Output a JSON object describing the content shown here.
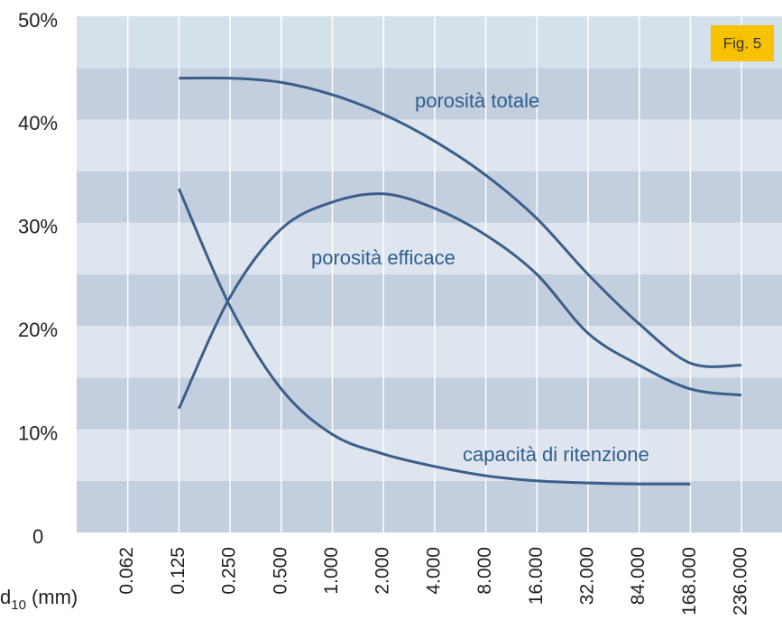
{
  "chart_data": {
    "type": "line",
    "badge": "Fig. 5",
    "x_label": {
      "main": "d",
      "sub": "10",
      "unit": "(mm)"
    },
    "categories": [
      "0.062",
      "0.125",
      "0.250",
      "0.500",
      "1.000",
      "2.000",
      "4.000",
      "8.000",
      "16.000",
      "32.000",
      "84.000",
      "168.000",
      "236.000"
    ],
    "series": [
      {
        "name": "porosità totale",
        "color": "#3a5f8a",
        "values": [
          null,
          44,
          44,
          43.6,
          42.4,
          40.5,
          37.9,
          34.6,
          30.4,
          25,
          20.2,
          16.4,
          16.2
        ]
      },
      {
        "name": "porosità efficace",
        "color": "#3a5f8a",
        "values": [
          null,
          12,
          22.8,
          29.4,
          32,
          32.8,
          31.4,
          28.8,
          25,
          19.3,
          16.2,
          13.9,
          13.3
        ]
      },
      {
        "name": "capacità di ritenzione",
        "color": "#3a5f8a",
        "values": [
          null,
          33.3,
          21.9,
          13.9,
          9.5,
          7.6,
          6.4,
          5.5,
          5,
          4.8,
          4.7,
          4.7,
          null
        ]
      }
    ],
    "ylim": [
      0,
      50
    ],
    "yticks": [
      0,
      {
        "value": 10,
        "label": "10%"
      },
      {
        "value": 20,
        "label": "20%"
      },
      {
        "value": 30,
        "label": "30%"
      },
      {
        "value": 40,
        "label": "40%"
      },
      {
        "value": 50,
        "label": "50%"
      }
    ],
    "grid": true,
    "band_colors": [
      "#c3cedf",
      "#dfe5ee",
      "#d5e1ea"
    ]
  }
}
